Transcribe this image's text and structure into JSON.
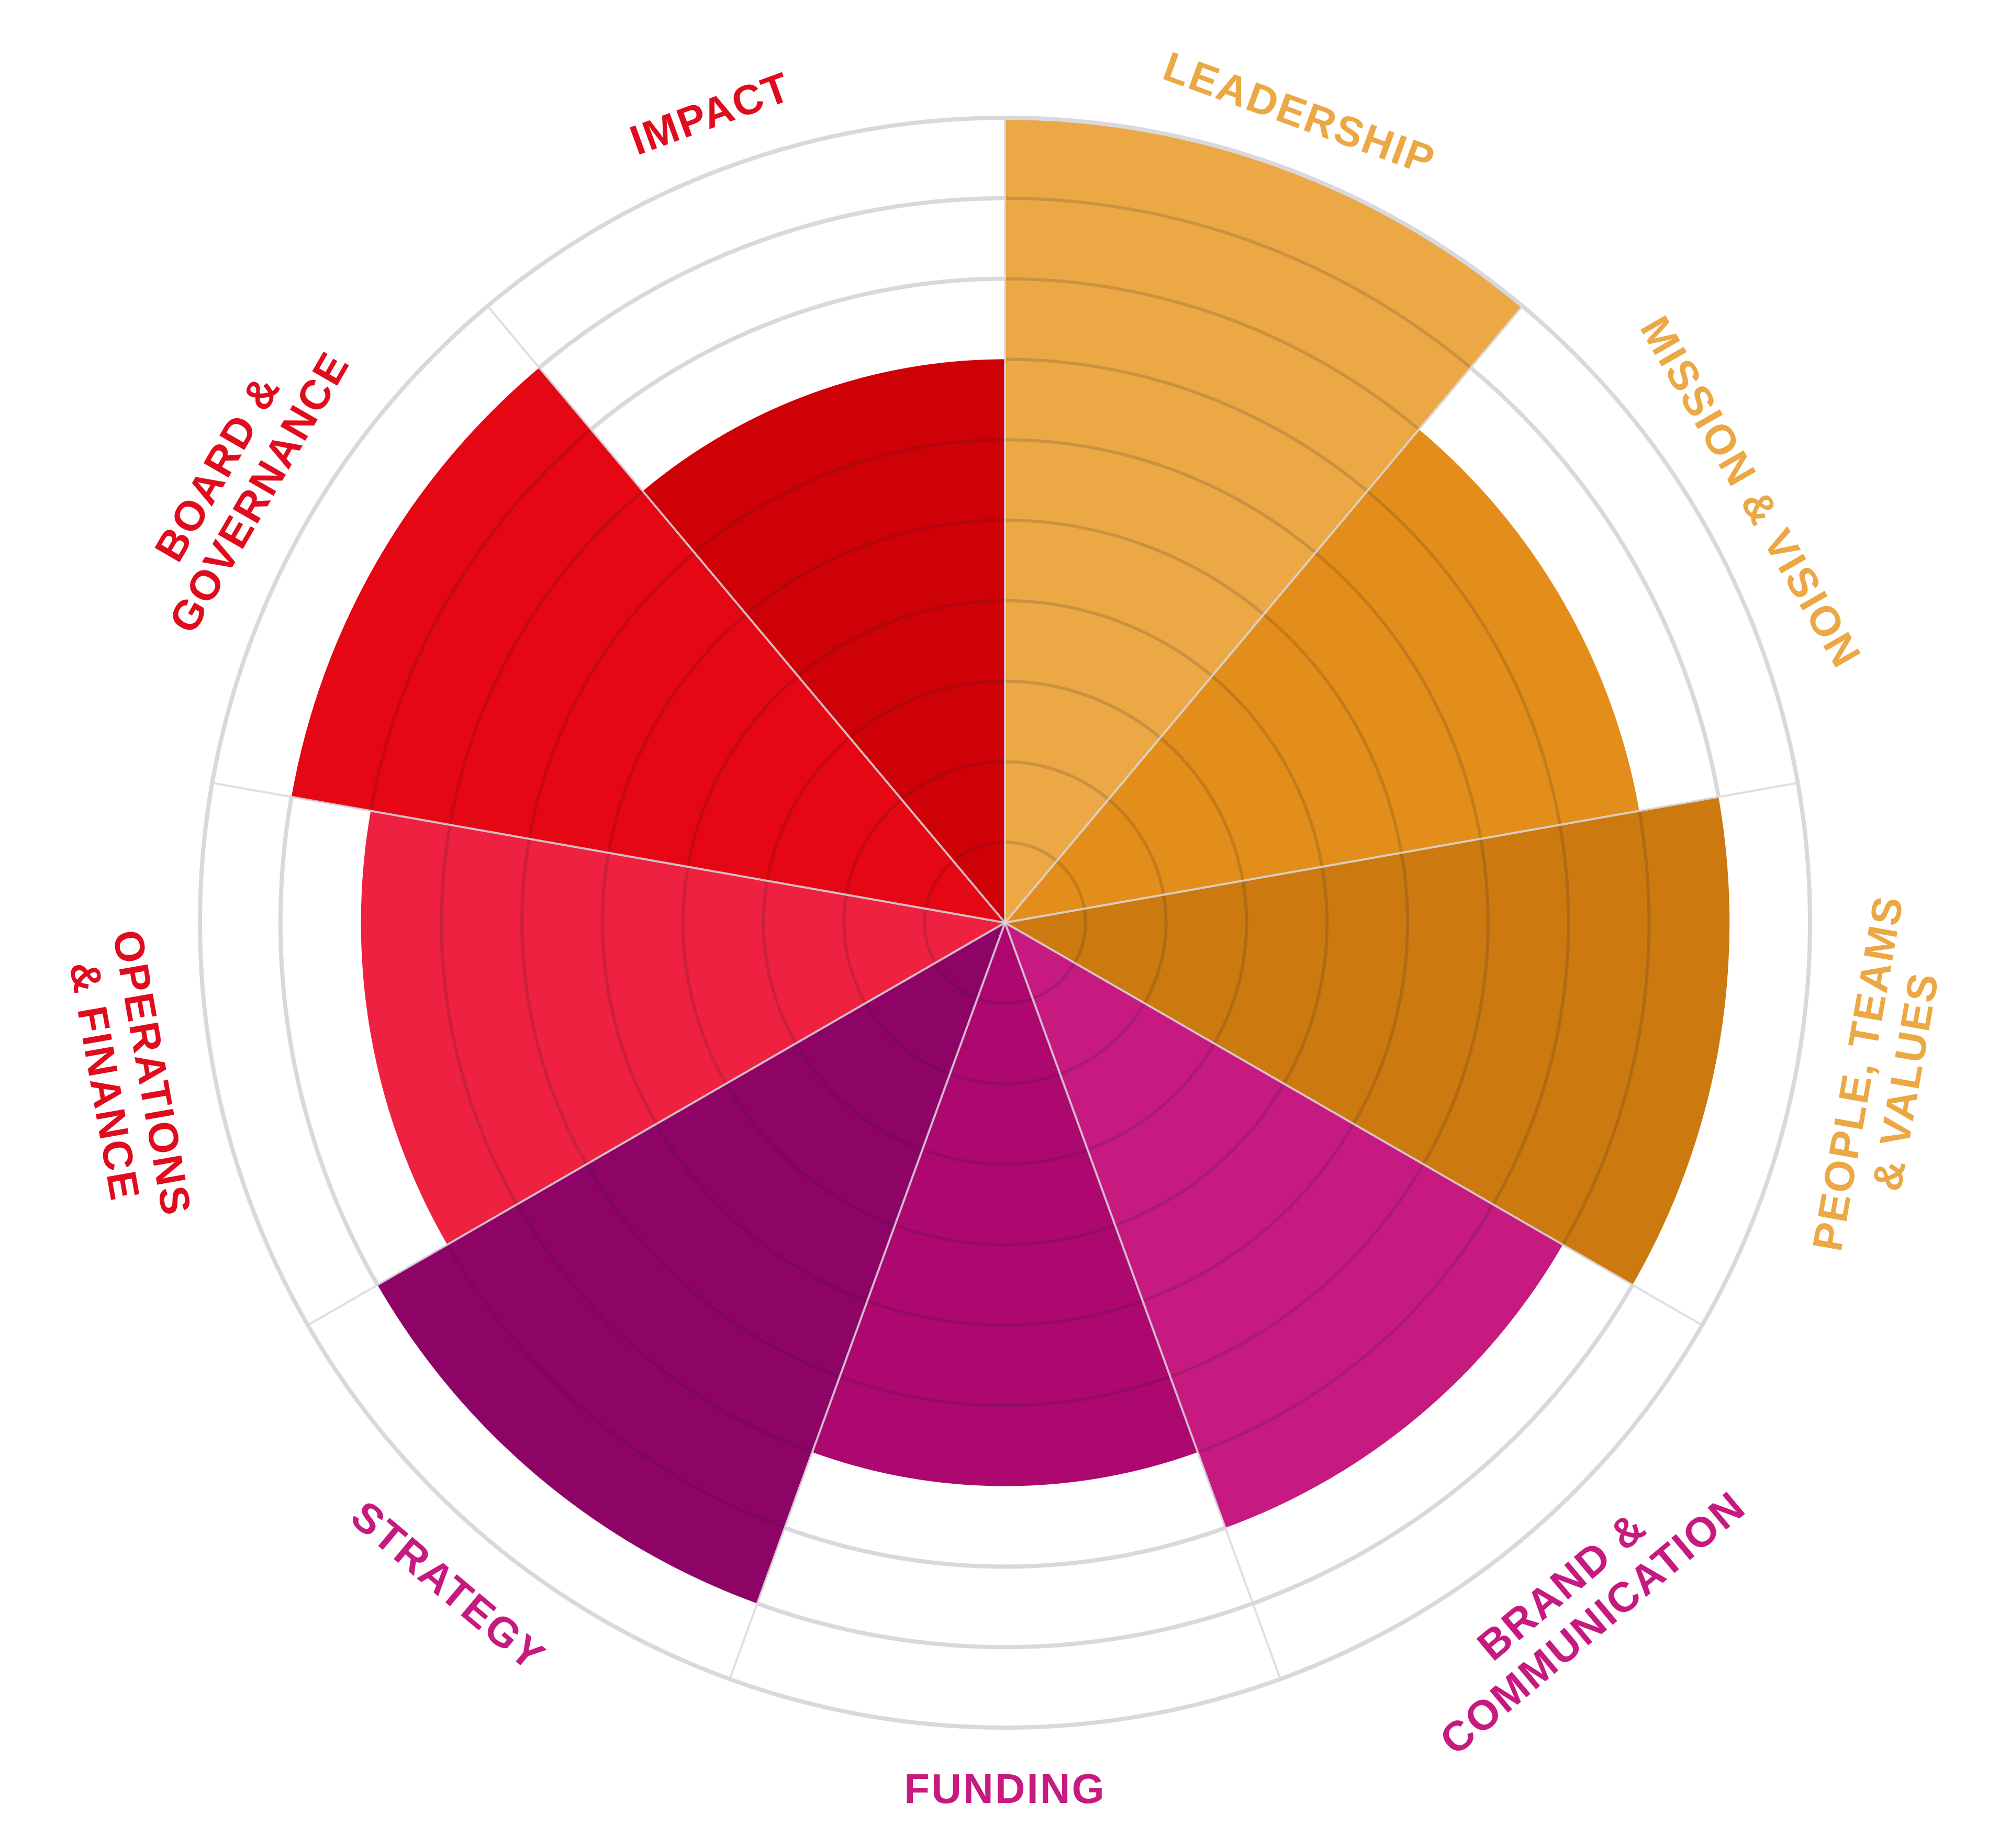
{
  "chart_data": {
    "type": "polar-area",
    "scale_max": 10,
    "rings": 10,
    "grid": true,
    "legend": "none",
    "categories": [
      {
        "label": [
          "LEADERSHIP"
        ],
        "value": 10,
        "color": "#EBA845",
        "label_color": "#EBA845"
      },
      {
        "label": [
          "MISSION & VISION"
        ],
        "value": 8,
        "color": "#E38E1A",
        "label_color": "#EBA845"
      },
      {
        "label": [
          "PEOPLE, TEAMS",
          "& VALUES"
        ],
        "value": 9,
        "color": "#CC790F",
        "label_color": "#EBA845"
      },
      {
        "label": [
          "BRAND &",
          "COMMUNICATION"
        ],
        "value": 8,
        "color": "#C61A80",
        "label_color": "#C61A80"
      },
      {
        "label": [
          "FUNDING"
        ],
        "value": 7,
        "color": "#AC086F",
        "label_color": "#C61A80"
      },
      {
        "label": [
          "STRATEGY"
        ],
        "value": 9,
        "color": "#8E0366",
        "label_color": "#C61A80"
      },
      {
        "label": [
          "OPERATIONS",
          "& FINANCE"
        ],
        "value": 8,
        "color": "#EE2140",
        "label_color": "#E00C1E"
      },
      {
        "label": [
          "BOARD &",
          "GOVERNANCE"
        ],
        "value": 9,
        "color": "#E50713",
        "label_color": "#E00C1E"
      },
      {
        "label": [
          "IMPACT"
        ],
        "value": 7,
        "color": "#CE0106",
        "label_color": "#E00C1E"
      }
    ],
    "outer_ring_color": "#D9D8DE",
    "grid_color": "#1E1E2A"
  }
}
